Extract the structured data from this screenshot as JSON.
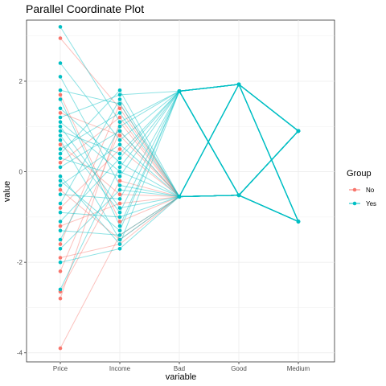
{
  "chart_data": {
    "type": "line",
    "subtype": "parallel-coordinates",
    "title": "Parallel Coordinate Plot",
    "xlabel": "variable",
    "ylabel": "value",
    "categories": [
      "Price",
      "Income",
      "Bad",
      "Good",
      "Medium"
    ],
    "ylim": [
      -4.2,
      3.35
    ],
    "yticks": [
      -4,
      -2,
      0,
      2
    ],
    "grid": true,
    "legend": {
      "title": "Group",
      "position": "right",
      "entries": [
        "No",
        "Yes"
      ]
    },
    "colors": {
      "No": "#F8766D",
      "Yes": "#00BFC4"
    },
    "series": [
      {
        "name": "Yes",
        "values": [
          3.2,
          1.1,
          1.78,
          1.93,
          0.9
        ]
      },
      {
        "name": "Yes",
        "values": [
          2.4,
          0.7,
          1.78,
          -0.52,
          -1.1
        ]
      },
      {
        "name": "Yes",
        "values": [
          2.1,
          -0.3,
          -0.55,
          1.93,
          -1.1
        ]
      },
      {
        "name": "Yes",
        "values": [
          1.8,
          1.5,
          -0.55,
          -0.52,
          0.9
        ]
      },
      {
        "name": "Yes",
        "values": [
          1.6,
          -1.2,
          1.78,
          1.93,
          0.9
        ]
      },
      {
        "name": "Yes",
        "values": [
          1.4,
          0.2,
          -0.55,
          -0.52,
          -1.1
        ]
      },
      {
        "name": "Yes",
        "values": [
          1.2,
          1.7,
          1.78,
          -0.52,
          0.9
        ]
      },
      {
        "name": "Yes",
        "values": [
          1.0,
          -0.8,
          -0.55,
          1.93,
          0.9
        ]
      },
      {
        "name": "Yes",
        "values": [
          0.9,
          0.4,
          1.78,
          1.93,
          -1.1
        ]
      },
      {
        "name": "Yes",
        "values": [
          0.7,
          -1.5,
          -0.55,
          -0.52,
          -1.1
        ]
      },
      {
        "name": "Yes",
        "values": [
          0.5,
          1.3,
          -0.55,
          -0.52,
          0.9
        ]
      },
      {
        "name": "Yes",
        "values": [
          0.3,
          -0.1,
          1.78,
          -0.52,
          0.9
        ]
      },
      {
        "name": "Yes",
        "values": [
          0.1,
          0.9,
          -0.55,
          1.93,
          -1.1
        ]
      },
      {
        "name": "Yes",
        "values": [
          -0.1,
          -1.6,
          1.78,
          1.93,
          0.9
        ]
      },
      {
        "name": "Yes",
        "values": [
          -0.3,
          0.6,
          -0.55,
          -0.52,
          -1.1
        ]
      },
      {
        "name": "Yes",
        "values": [
          -0.5,
          -0.6,
          1.78,
          -0.52,
          -1.1
        ]
      },
      {
        "name": "Yes",
        "values": [
          -0.7,
          1.6,
          -0.55,
          1.93,
          0.9
        ]
      },
      {
        "name": "Yes",
        "values": [
          -0.9,
          -1.0,
          -0.55,
          -0.52,
          0.9
        ]
      },
      {
        "name": "Yes",
        "values": [
          -1.1,
          0.3,
          1.78,
          1.93,
          -1.1
        ]
      },
      {
        "name": "Yes",
        "values": [
          -1.3,
          -1.4,
          -0.55,
          -0.52,
          -1.1
        ]
      },
      {
        "name": "Yes",
        "values": [
          -1.5,
          1.0,
          1.78,
          -0.52,
          0.9
        ]
      },
      {
        "name": "Yes",
        "values": [
          -1.7,
          -0.4,
          -0.55,
          1.93,
          -1.1
        ]
      },
      {
        "name": "Yes",
        "values": [
          -2.0,
          -1.7,
          -0.55,
          -0.52,
          0.9
        ]
      },
      {
        "name": "Yes",
        "values": [
          -2.6,
          0.1,
          1.78,
          -0.52,
          -1.1
        ]
      },
      {
        "name": "Yes",
        "values": [
          0.4,
          1.8,
          -0.55,
          -0.52,
          0.9
        ]
      },
      {
        "name": "Yes",
        "values": [
          -0.2,
          -1.3,
          1.78,
          1.93,
          0.9
        ]
      },
      {
        "name": "Yes",
        "values": [
          1.1,
          0.0,
          -0.55,
          -0.52,
          -1.1
        ]
      },
      {
        "name": "Yes",
        "values": [
          0.8,
          -0.9,
          1.78,
          -0.52,
          0.9
        ]
      },
      {
        "name": "No",
        "values": [
          2.95,
          1.4,
          -0.55,
          -0.52,
          0.9
        ]
      },
      {
        "name": "No",
        "values": [
          1.7,
          -1.1,
          -0.55,
          -0.52,
          -1.1
        ]
      },
      {
        "name": "No",
        "values": [
          1.3,
          0.8,
          -0.55,
          -0.52,
          0.9
        ]
      },
      {
        "name": "No",
        "values": [
          0.6,
          -0.5,
          -0.55,
          -0.52,
          -1.1
        ]
      },
      {
        "name": "No",
        "values": [
          0.2,
          1.2,
          -0.55,
          -0.52,
          0.9
        ]
      },
      {
        "name": "No",
        "values": [
          -0.4,
          -1.5,
          -0.55,
          -0.52,
          -1.1
        ]
      },
      {
        "name": "No",
        "values": [
          -0.8,
          0.5,
          -0.55,
          -0.52,
          0.9
        ]
      },
      {
        "name": "No",
        "values": [
          -1.2,
          -0.7,
          -0.55,
          -0.52,
          -1.1
        ]
      },
      {
        "name": "No",
        "values": [
          -1.6,
          1.5,
          -0.55,
          -0.52,
          0.9
        ]
      },
      {
        "name": "No",
        "values": [
          -1.9,
          -1.6,
          -0.55,
          -0.52,
          -1.1
        ]
      },
      {
        "name": "No",
        "values": [
          -2.2,
          0.9,
          -0.55,
          -0.52,
          0.9
        ]
      },
      {
        "name": "No",
        "values": [
          -2.65,
          -0.2,
          -0.55,
          -0.52,
          -1.1
        ]
      },
      {
        "name": "No",
        "values": [
          -2.8,
          1.1,
          -0.55,
          -0.52,
          0.9
        ]
      },
      {
        "name": "No",
        "values": [
          -3.9,
          -1.4,
          -0.55,
          -0.52,
          -1.1
        ]
      }
    ]
  }
}
